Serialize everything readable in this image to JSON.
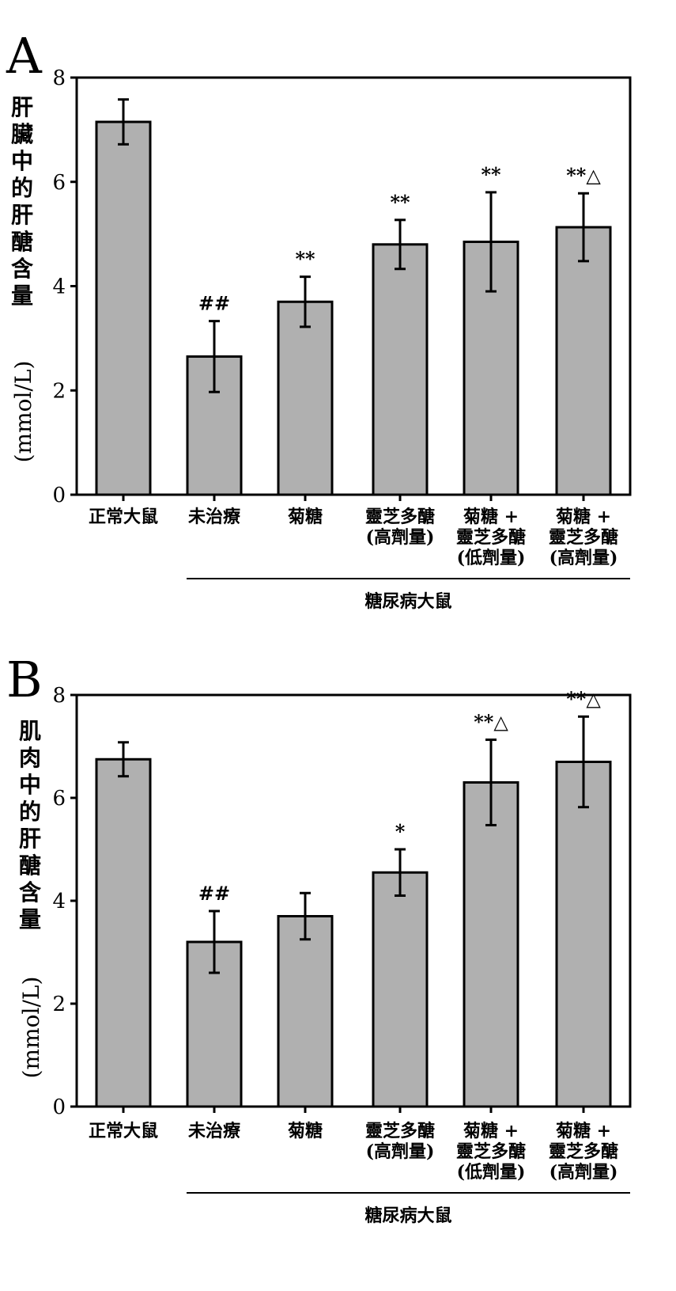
{
  "chart_data": [
    {
      "type": "bar",
      "panel_label": "A",
      "ylabel_cjk": [
        "肝",
        "臟",
        "中",
        "的",
        "肝",
        "醣",
        "含",
        "量"
      ],
      "ylabel_unit": "(mmol/L)",
      "ylim": [
        0,
        8
      ],
      "yticks": [
        "0",
        "2",
        "4",
        "6",
        "8"
      ],
      "categories": [
        [
          "正常大鼠"
        ],
        [
          "未治療"
        ],
        [
          "菊糖"
        ],
        [
          "靈芝多醣",
          "(高劑量)"
        ],
        [
          "菊糖 +",
          "靈芝多醣",
          "(低劑量)"
        ],
        [
          "菊糖 +",
          "靈芝多醣",
          "(高劑量)"
        ]
      ],
      "values": [
        7.15,
        2.65,
        3.7,
        4.8,
        4.85,
        5.13
      ],
      "errors": [
        0.43,
        0.68,
        0.48,
        0.47,
        0.95,
        0.65
      ],
      "significance": [
        "",
        "##",
        "**",
        "**",
        "**",
        "**△"
      ],
      "group_label": "糖尿病大鼠",
      "group_from_index": 1,
      "bar_color": "#b0b0b0"
    },
    {
      "type": "bar",
      "panel_label": "B",
      "ylabel_cjk": [
        "肌",
        "肉",
        "中",
        "的",
        "肝",
        "醣",
        "含",
        "量"
      ],
      "ylabel_unit": "(mmol/L)",
      "ylim": [
        0,
        8
      ],
      "yticks": [
        "0",
        "2",
        "4",
        "6",
        "8"
      ],
      "categories": [
        [
          "正常大鼠"
        ],
        [
          "未治療"
        ],
        [
          "菊糖"
        ],
        [
          "靈芝多醣",
          "(高劑量)"
        ],
        [
          "菊糖 +",
          "靈芝多醣",
          "(低劑量)"
        ],
        [
          "菊糖 +",
          "靈芝多醣",
          "(高劑量)"
        ]
      ],
      "values": [
        6.75,
        3.2,
        3.7,
        4.55,
        6.3,
        6.7
      ],
      "errors": [
        0.33,
        0.6,
        0.45,
        0.45,
        0.83,
        0.88
      ],
      "significance": [
        "",
        "##",
        "",
        "*",
        "**△",
        "**△"
      ],
      "group_label": "糖尿病大鼠",
      "group_from_index": 1,
      "bar_color": "#b0b0b0"
    }
  ]
}
